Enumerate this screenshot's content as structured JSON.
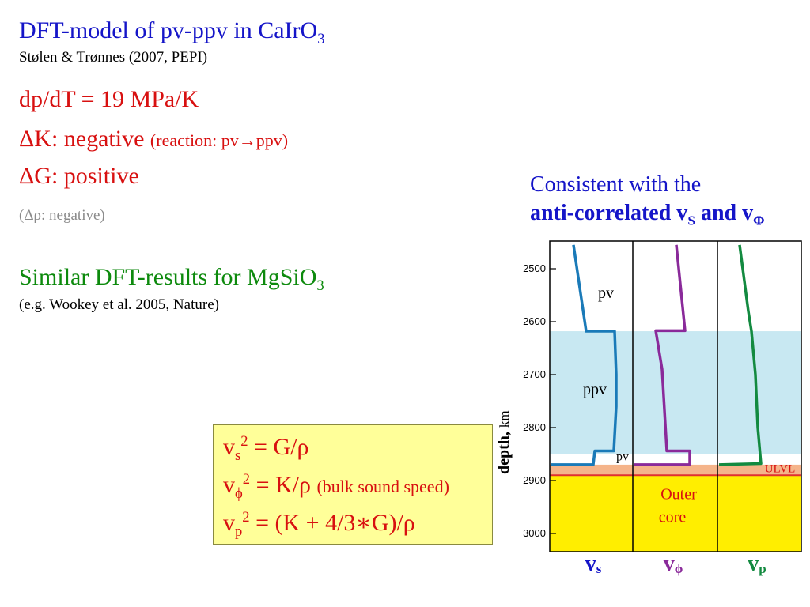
{
  "title": {
    "main": "DFT-model of pv-ppv in CaIrO",
    "sub": "3"
  },
  "subtitle": "Stølen & Trønnes (2007, PEPI)",
  "lines": {
    "dpdt": "dp/dT = 19 MPa/K",
    "dk_main": "ΔK: negative ",
    "dk_note": "(reaction: pv→ppv)",
    "dg": "ΔG: positive",
    "drho": "(Δρ: negative)"
  },
  "similar": {
    "main": "Similar DFT-results for MgSiO",
    "sub": "3",
    "ref": "(e.g. Wookey et al. 2005, Nature)"
  },
  "consistent": {
    "line1": "Consistent with the",
    "line2_a": "anti-correlated v",
    "line2_s": "S",
    "line2_b": " and v",
    "line2_phi": "Φ"
  },
  "formulas": {
    "f1_a": "v",
    "f1_sub": "s",
    "f1_sup": "2",
    "f1_b": " = G/ρ",
    "f2_a": "v",
    "f2_sub": "ϕ",
    "f2_sup": "2",
    "f2_b": " = K/ρ ",
    "f2_note": "(bulk sound speed)",
    "f3_a": "v",
    "f3_sub": "p",
    "f3_sup": "2",
    "f3_b": " = (K + 4/3∗G)/ρ"
  },
  "diagram": {
    "ylabel_bold": "depth,",
    "ylabel_unit": "km",
    "ticks": [
      "2500",
      "2600",
      "2700",
      "2800",
      "2900",
      "3000"
    ],
    "labels": {
      "pv_top": "pv",
      "ppv": "ppv",
      "pv_bottom": "pv",
      "ulvl": "ULVL",
      "outer": "Outer",
      "core": "core"
    },
    "columns": [
      {
        "v": "v",
        "sub": "s",
        "color": "#1a7ab8"
      },
      {
        "v": "v",
        "sub": "ϕ",
        "color": "#8a2a9a"
      },
      {
        "v": "v",
        "sub": "p",
        "color": "#138a40"
      }
    ],
    "colors": {
      "ppv_band": "#c8e8f2",
      "ulvl_band": "#f5b48a",
      "core": "#ffee00",
      "cmb_line": "#e03030",
      "label_red": "#d81010",
      "col_label": "#1515c8"
    }
  }
}
